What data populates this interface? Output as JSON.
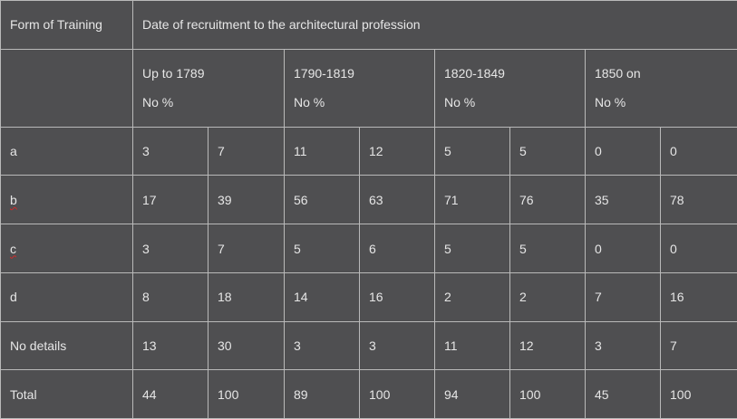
{
  "table": {
    "header": {
      "form_label": "Form of Training",
      "date_label": "Date of recruitment to the architectural profession"
    },
    "periods": [
      {
        "label": "Up to 1789",
        "sub": "No %"
      },
      {
        "label": "1790-1819",
        "sub": "No %"
      },
      {
        "label": "1820-1849",
        "sub": "No %"
      },
      {
        "label": "1850 on",
        "sub": "No %"
      }
    ],
    "rows": [
      {
        "label": "a",
        "cells": [
          "3",
          "7",
          "11",
          "12",
          "5",
          "5",
          "0",
          "0"
        ]
      },
      {
        "label": "b",
        "cells": [
          "17",
          "39",
          "56",
          "63",
          "71",
          "76",
          "35",
          "78"
        ]
      },
      {
        "label": "c",
        "cells": [
          "3",
          "7",
          "5",
          "6",
          "5",
          "5",
          "0",
          "0"
        ]
      },
      {
        "label": "d",
        "cells": [
          "8",
          "18",
          "14",
          "16",
          "2",
          "2",
          "7",
          "16"
        ]
      },
      {
        "label": "No details",
        "cells": [
          "13",
          "30",
          "3",
          "3",
          "11",
          "12",
          "3",
          "7"
        ]
      },
      {
        "label": "Total",
        "cells": [
          "44",
          "100",
          "89",
          "100",
          "94",
          "100",
          "45",
          "100"
        ]
      }
    ]
  },
  "colors": {
    "background": "#4f4f51",
    "border": "#b9b9b9",
    "text": "#e6e6e6",
    "spellcheck_underline": "#cc2a2a"
  }
}
